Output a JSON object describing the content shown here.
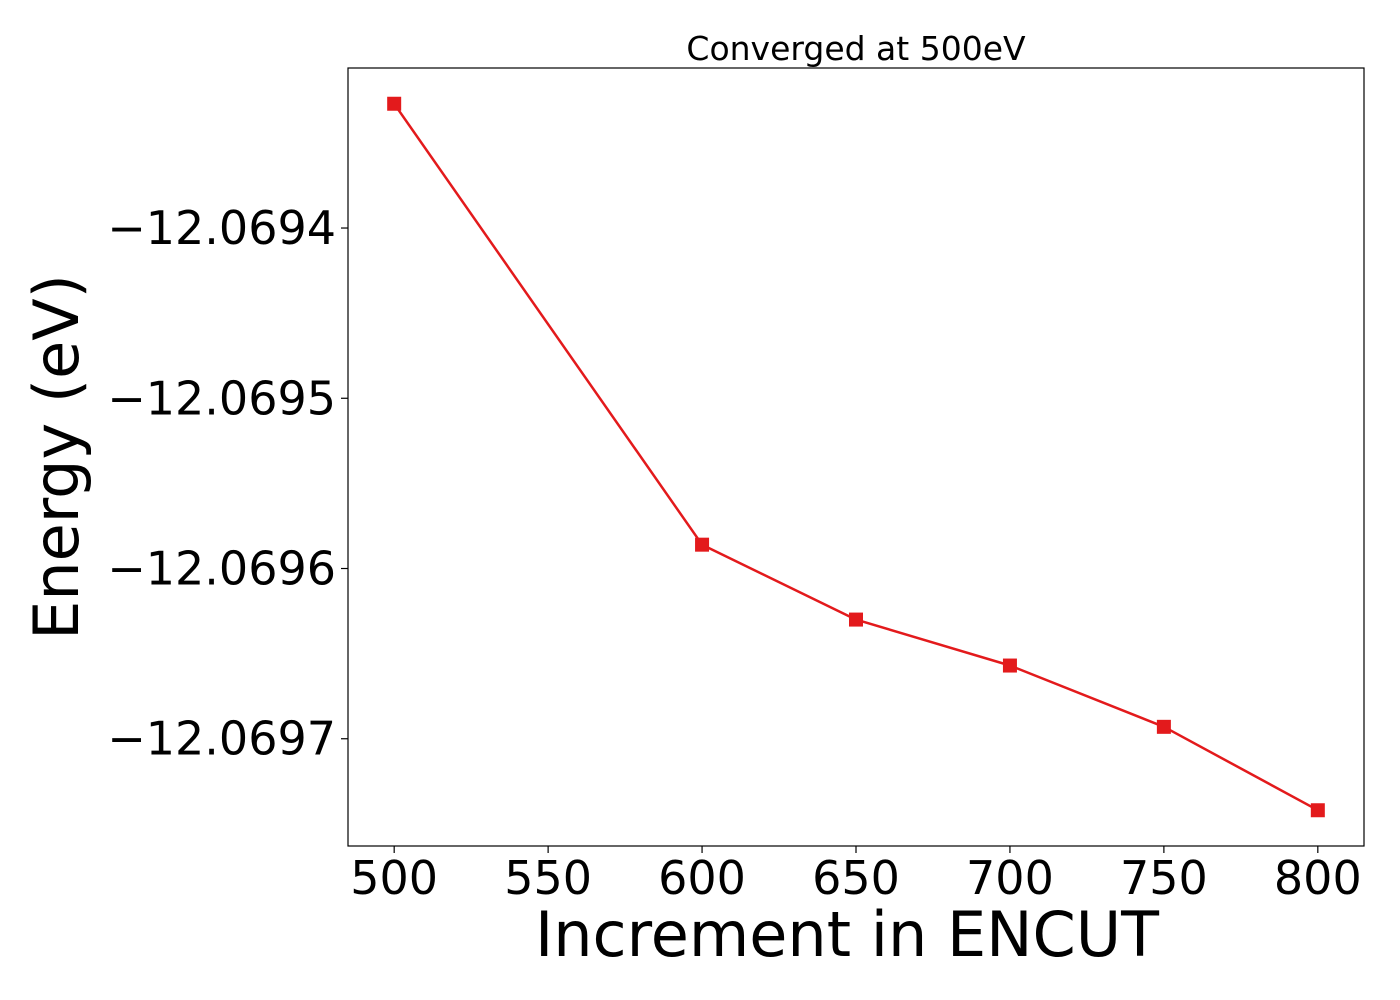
{
  "chart_data": {
    "type": "line",
    "title": "Converged at 500eV",
    "xlabel": "Increment in ENCUT",
    "ylabel": "Energy (eV)",
    "x": [
      500,
      600,
      650,
      700,
      750,
      800
    ],
    "series": [
      {
        "values": [
          -12.069327,
          -12.069586,
          -12.06963,
          -12.069657,
          -12.069693,
          -12.069742
        ],
        "color": "#e31a1c",
        "marker": "square"
      }
    ],
    "xticks": [
      500,
      550,
      600,
      650,
      700,
      750,
      800
    ],
    "xtick_labels": [
      "500",
      "550",
      "600",
      "650",
      "700",
      "750",
      "800"
    ],
    "yticks": [
      -12.0694,
      -12.0695,
      -12.0696,
      -12.0697
    ],
    "ytick_labels": [
      "−12.0694",
      "−12.0695",
      "−12.0696",
      "−12.0697"
    ],
    "xlim": [
      485,
      815
    ],
    "ylim": [
      -12.069763,
      -12.069306
    ],
    "grid": false,
    "legend": "none"
  }
}
